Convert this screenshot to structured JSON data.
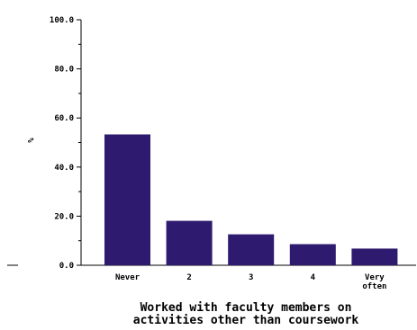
{
  "chart_data": {
    "type": "bar",
    "categories": [
      [
        "Never"
      ],
      [
        "2"
      ],
      [
        "3"
      ],
      [
        "4"
      ],
      [
        "Very",
        "often"
      ]
    ],
    "values": [
      53.3,
      18.1,
      12.6,
      8.6,
      6.8
    ],
    "ylabel": "%",
    "xlabel": [
      "Worked with faculty members on",
      "activities other than coursework"
    ],
    "ylim": [
      0,
      100
    ],
    "yticks": [
      "0.0",
      "20.0",
      "40.0",
      "60.0",
      "80.0",
      "100.0"
    ],
    "bar_color": "#2e1a6e",
    "grid": false,
    "legend": "none"
  }
}
